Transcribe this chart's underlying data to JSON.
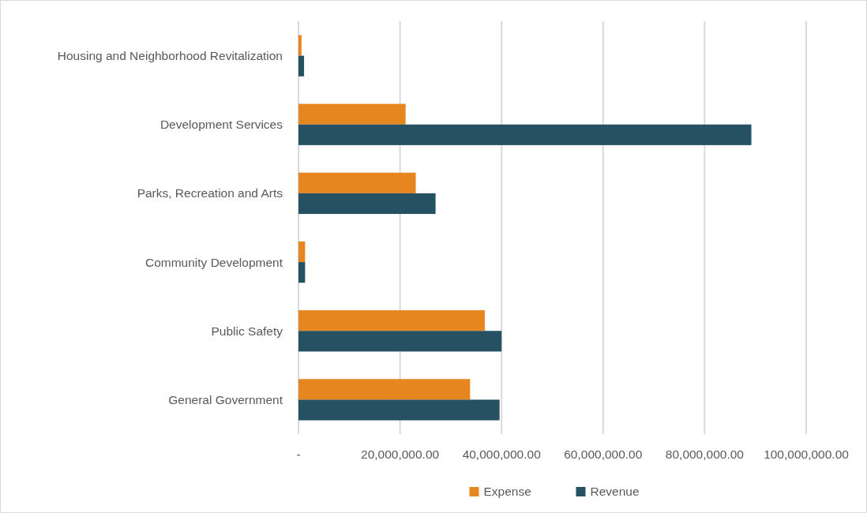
{
  "chart_data": {
    "type": "bar",
    "orientation": "horizontal",
    "categories": [
      "Housing and Neighborhood Revitalization",
      "Development Services",
      "Parks, Recreation and Arts",
      "Community Development",
      "Public Safety",
      "General Government"
    ],
    "series": [
      {
        "name": "Expense",
        "color": "#e6861e",
        "values": [
          600000,
          21100000,
          23100000,
          1300000,
          36700000,
          33800000
        ]
      },
      {
        "name": "Revenue",
        "color": "#265163",
        "values": [
          1100000,
          89200000,
          27000000,
          1300000,
          40000000,
          39600000
        ]
      }
    ],
    "xlim": [
      0,
      100000000
    ],
    "xticks": [
      {
        "value": 0,
        "label": "-"
      },
      {
        "value": 20000000,
        "label": "20,000,000.00"
      },
      {
        "value": 40000000,
        "label": "40,000,000.00"
      },
      {
        "value": 60000000,
        "label": "60,000,000.00"
      },
      {
        "value": 80000000,
        "label": "80,000,000.00"
      },
      {
        "value": 100000000,
        "label": "100,000,000.00"
      }
    ],
    "grid": "x",
    "legend": "bottom"
  }
}
